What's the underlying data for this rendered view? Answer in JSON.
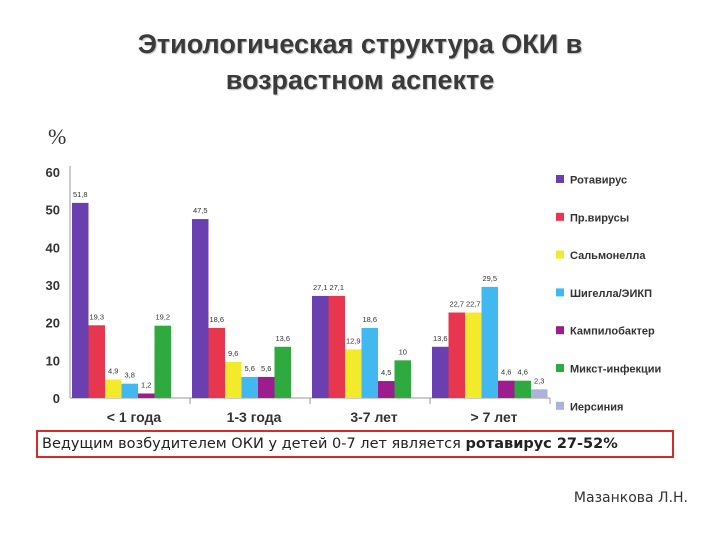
{
  "slide": {
    "title_line1": "Этиологическая структура ОКИ в",
    "title_line2": "возрастном аспекте",
    "y_unit": "%",
    "note_text": "Ведущим возбудителем ОКИ у детей 0-7 лет является ",
    "note_bold": "ротавирус 27-52%",
    "author": "Мазанкова Л.Н."
  },
  "chart_data": {
    "type": "bar",
    "categories": [
      "< 1 года",
      "1-3 года",
      "3-7 лет",
      "> 7 лет"
    ],
    "ylim": [
      0,
      60
    ],
    "yticks": [
      0,
      10,
      20,
      30,
      40,
      50,
      60
    ],
    "grid": false,
    "legend": "right",
    "series": [
      {
        "name": "Ротавирус",
        "color": "#6a3fb0",
        "values": [
          51.8,
          47.5,
          27.1,
          13.6
        ],
        "labels": [
          "51,8",
          "47,5",
          "27,1",
          "13,6"
        ]
      },
      {
        "name": "Пр.вирусы",
        "color": "#e8364f",
        "values": [
          19.3,
          18.6,
          27.1,
          22.7
        ],
        "labels": [
          "19,3",
          "18,6",
          "27,1",
          "22,7"
        ]
      },
      {
        "name": "Сальмонелла",
        "color": "#f2ea2a",
        "values": [
          4.9,
          9.6,
          12.9,
          22.7
        ],
        "labels": [
          "4,9",
          "9,6",
          "12,9",
          "22,7"
        ]
      },
      {
        "name": "Шигелла/ЭИКП",
        "color": "#41b8ef",
        "values": [
          3.8,
          5.6,
          18.6,
          29.5
        ],
        "labels": [
          "3,8",
          "5,6",
          "18,6",
          "29,5"
        ]
      },
      {
        "name": "Кампилобактер",
        "color": "#9b1d8e",
        "values": [
          1.2,
          5.6,
          4.5,
          4.6
        ],
        "labels": [
          "1,2",
          "5,6",
          "4,5",
          "4,6"
        ]
      },
      {
        "name": "Микст-инфекции",
        "color": "#2eaa3f",
        "values": [
          19.2,
          13.6,
          10,
          4.6
        ],
        "labels": [
          "19,2",
          "13,6",
          "10",
          "4,6"
        ]
      },
      {
        "name": "Иерсиния",
        "color": "#a9b3dc",
        "values": [
          null,
          null,
          null,
          2.3
        ],
        "labels": [
          "",
          "",
          "",
          "2,3"
        ]
      }
    ]
  }
}
